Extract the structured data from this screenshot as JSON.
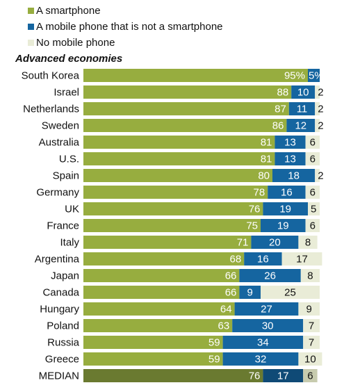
{
  "chart_data": {
    "type": "bar",
    "orientation": "horizontal",
    "stacked": true,
    "section_title": "Advanced economies",
    "legend_placement": "top-left",
    "categories": [
      "South Korea",
      "Israel",
      "Netherlands",
      "Sweden",
      "Australia",
      "U.S.",
      "Spain",
      "Germany",
      "UK",
      "France",
      "Italy",
      "Argentina",
      "Japan",
      "Canada",
      "Hungary",
      "Poland",
      "Russia",
      "Greece",
      "MEDIAN"
    ],
    "series": [
      {
        "name": "A smartphone",
        "color": "#97ad3f",
        "median_color": "#6a7a30",
        "values": [
          95,
          88,
          87,
          86,
          81,
          81,
          80,
          78,
          76,
          75,
          71,
          68,
          66,
          66,
          64,
          63,
          59,
          59,
          76
        ],
        "labels": [
          "95%",
          "88",
          "87",
          "86",
          "81",
          "81",
          "80",
          "78",
          "76",
          "75",
          "71",
          "68",
          "66",
          "66",
          "64",
          "63",
          "59",
          "59",
          "76"
        ]
      },
      {
        "name": "A mobile phone that is not a smartphone",
        "color": "#1565a0",
        "median_color": "#0f4a76",
        "values": [
          5,
          10,
          11,
          12,
          13,
          13,
          18,
          16,
          19,
          19,
          20,
          16,
          26,
          9,
          27,
          30,
          34,
          32,
          17
        ],
        "labels": [
          "5%",
          "10",
          "11",
          "12",
          "13",
          "13",
          "18",
          "16",
          "19",
          "19",
          "20",
          "16",
          "26",
          "9",
          "27",
          "30",
          "34",
          "32",
          "17"
        ]
      },
      {
        "name": "No mobile phone",
        "color": "#e9ecd7",
        "median_color": "#c7cbae",
        "values": [
          0,
          2,
          2,
          2,
          6,
          6,
          2,
          6,
          5,
          6,
          8,
          17,
          8,
          25,
          9,
          7,
          7,
          10,
          6
        ],
        "labels": [
          "",
          "2",
          "2",
          "2",
          "6",
          "6",
          "2",
          "6",
          "5",
          "6",
          "8",
          "17",
          "8",
          "25",
          "9",
          "7",
          "7",
          "10",
          "6"
        ]
      }
    ],
    "xlim": [
      0,
      100
    ]
  }
}
